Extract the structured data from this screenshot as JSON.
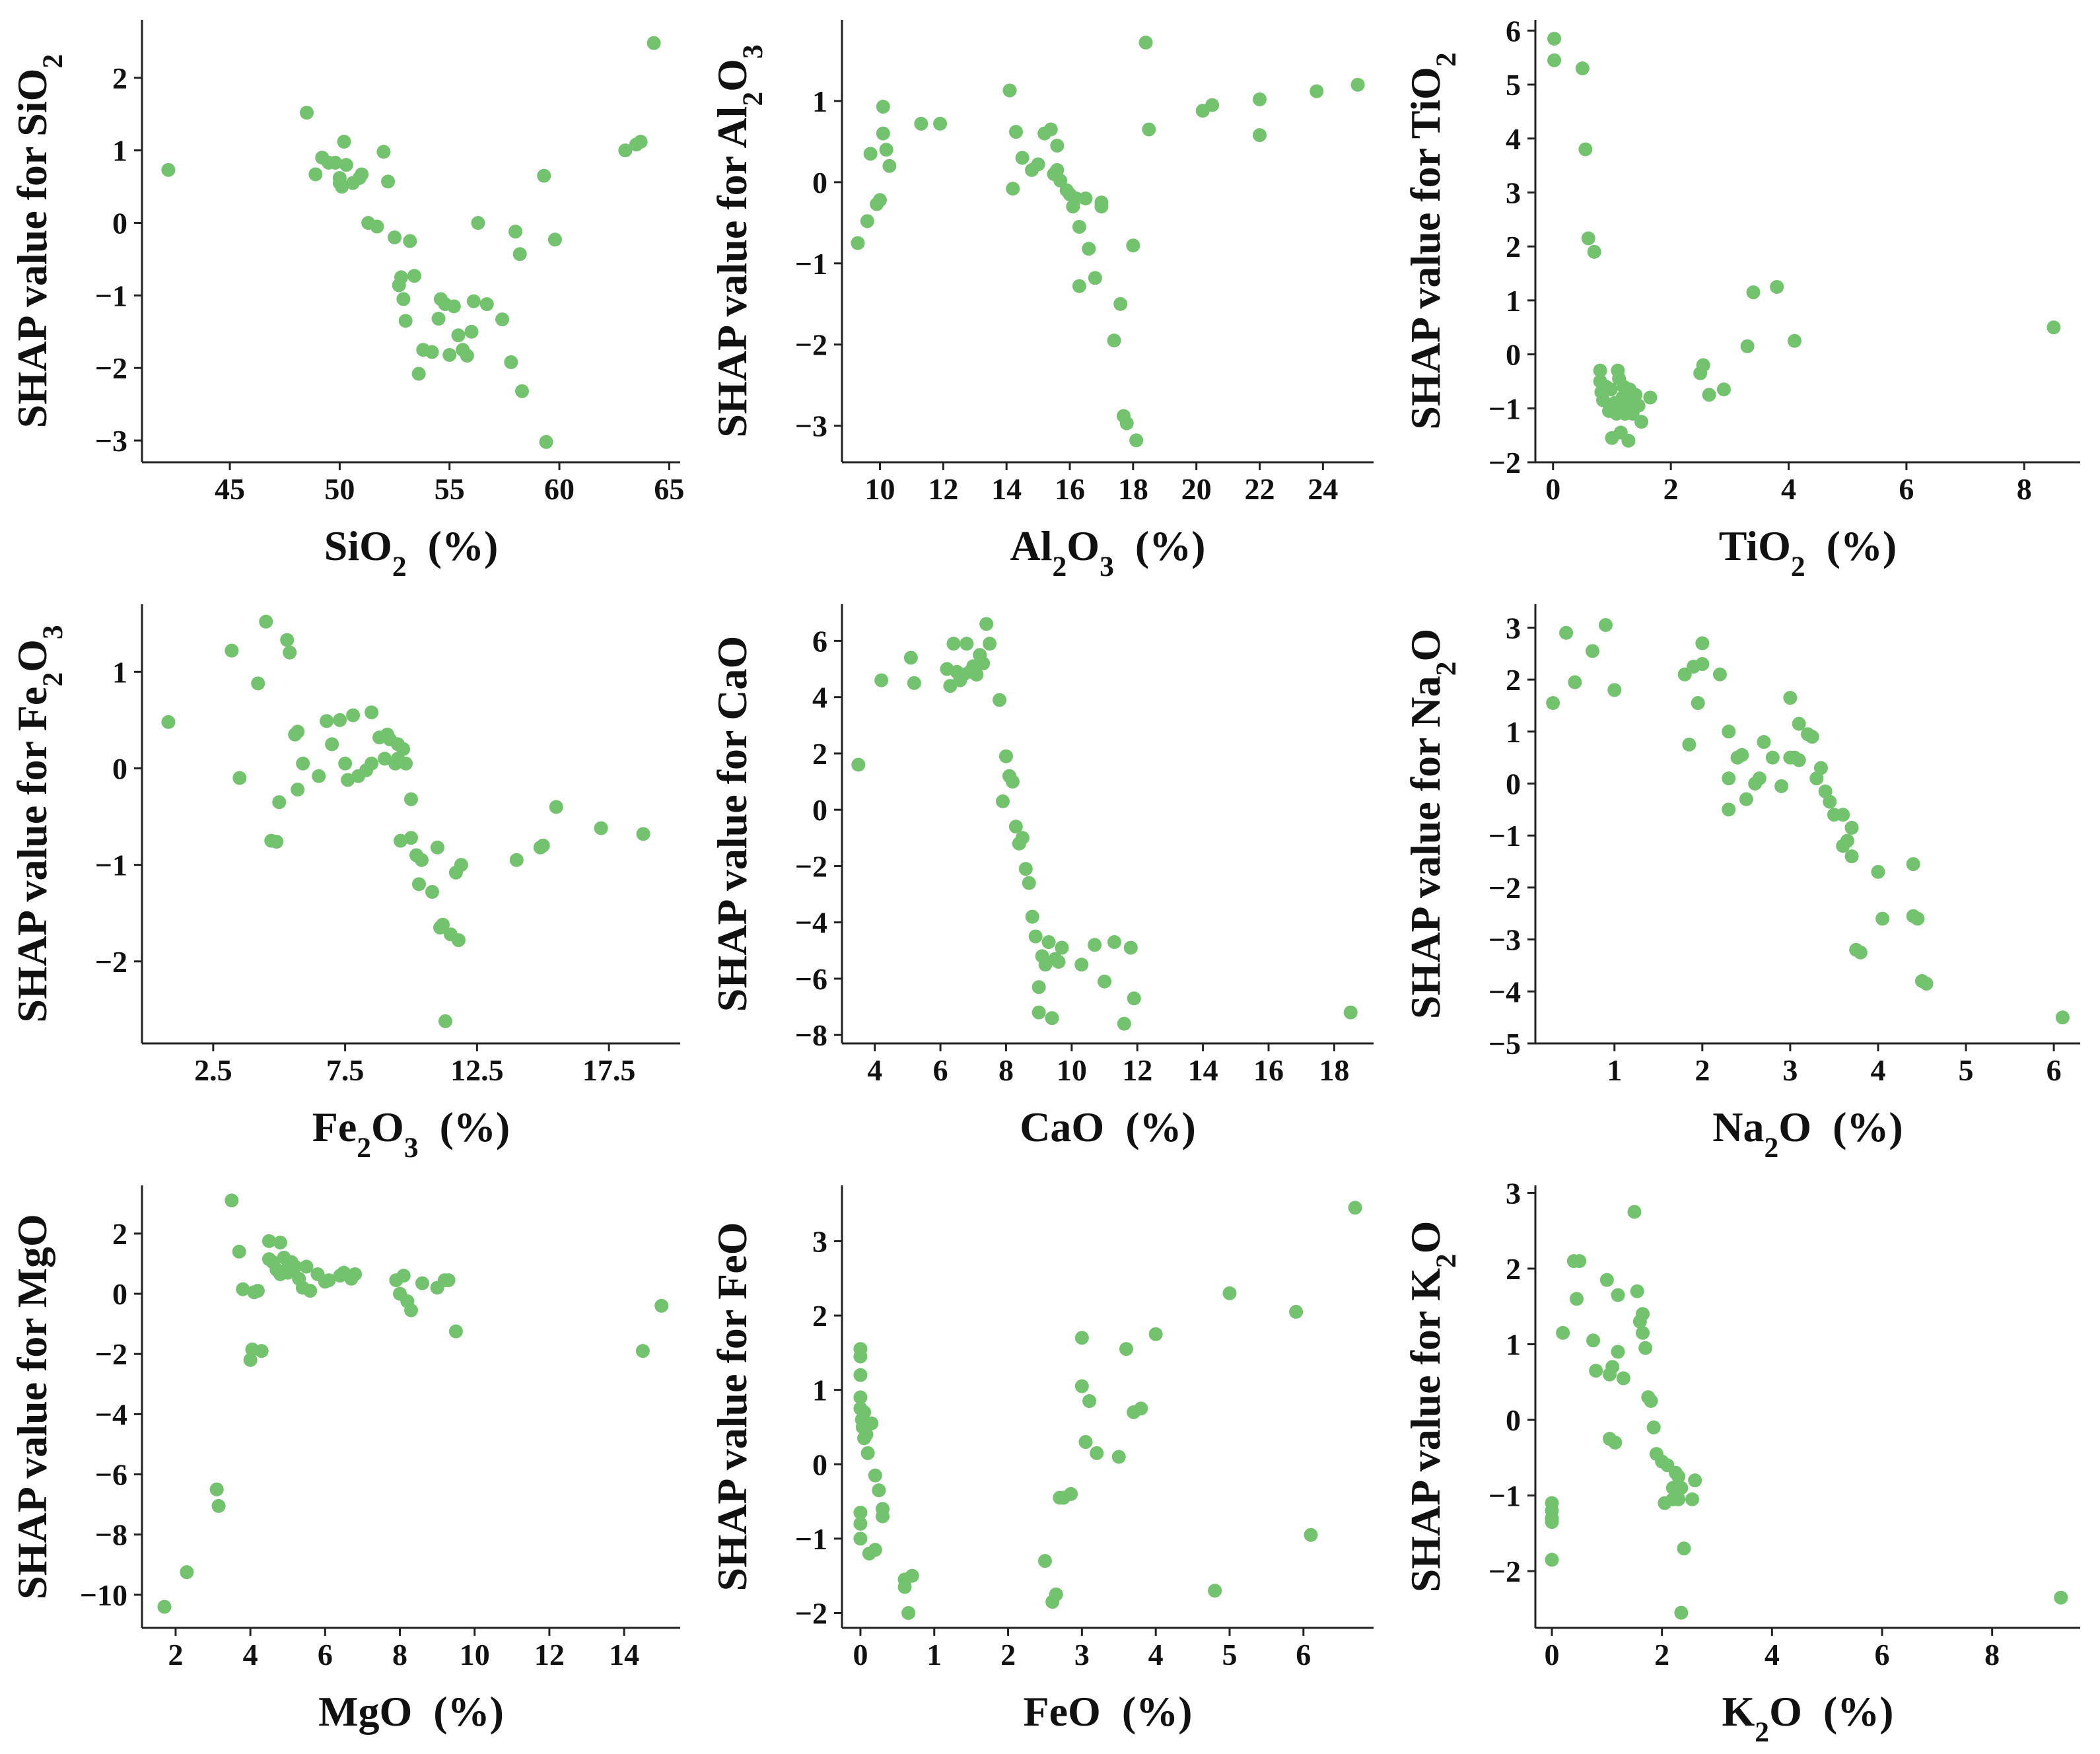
{
  "chart_data": [
    {
      "type": "scatter",
      "title": "",
      "xlabel": "SiO2 (%)",
      "ylabel": "SHAP value for SiO2",
      "xlim": [
        41,
        65.5
      ],
      "ylim": [
        -3.3,
        2.8
      ],
      "xticks": [
        "45",
        "50",
        "55",
        "60",
        "65"
      ],
      "yticks": [
        "2",
        "1",
        "0",
        "−1",
        "−2",
        "−3"
      ],
      "x": [
        42.2,
        48.5,
        48.9,
        49.2,
        49.5,
        49.8,
        50.0,
        50.0,
        50.1,
        50.2,
        50.3,
        50.6,
        50.9,
        51.0,
        51.3,
        51.7,
        52.0,
        52.2,
        52.5,
        52.7,
        52.8,
        52.9,
        53.0,
        53.2,
        53.4,
        53.6,
        53.8,
        54.2,
        54.5,
        54.6,
        54.8,
        55.0,
        55.2,
        55.4,
        55.6,
        55.8,
        56.0,
        56.1,
        56.3,
        56.7,
        57.4,
        57.8,
        58.0,
        58.2,
        58.3,
        59.3,
        59.4,
        59.8,
        63.0,
        63.5,
        63.7,
        64.3
      ],
      "y": [
        0.73,
        1.52,
        0.67,
        0.9,
        0.83,
        0.83,
        0.62,
        0.55,
        0.5,
        1.12,
        0.8,
        0.55,
        0.62,
        0.67,
        0.0,
        -0.05,
        0.98,
        0.57,
        -0.2,
        -0.86,
        -0.75,
        -1.05,
        -1.35,
        -0.25,
        -0.73,
        -2.08,
        -1.75,
        -1.78,
        -1.32,
        -1.05,
        -1.12,
        -1.82,
        -1.15,
        -1.55,
        -1.75,
        -1.83,
        -1.5,
        -1.08,
        -0.0,
        -1.12,
        -1.33,
        -1.92,
        -0.12,
        -0.43,
        -2.32,
        0.65,
        -3.02,
        -0.23,
        1.0,
        1.08,
        1.12,
        2.48
      ],
      "series_name": "SHAP values"
    },
    {
      "type": "scatter",
      "title": "",
      "xlabel": "Al2O3 (%)",
      "ylabel": "SHAP value for Al2O3",
      "xlim": [
        8.8,
        25.6
      ],
      "ylim": [
        -3.45,
        2.0
      ],
      "xticks": [
        "10",
        "12",
        "14",
        "16",
        "18",
        "20",
        "22",
        "24"
      ],
      "yticks": [
        "1",
        "0",
        "−1",
        "−2",
        "−3"
      ],
      "x": [
        9.3,
        9.6,
        9.7,
        9.9,
        10.0,
        10.1,
        10.1,
        10.2,
        10.3,
        11.3,
        11.9,
        14.1,
        14.2,
        14.3,
        14.5,
        14.8,
        15.0,
        15.2,
        15.4,
        15.5,
        15.6,
        15.6,
        15.7,
        15.9,
        16.0,
        16.1,
        16.2,
        16.3,
        16.3,
        16.5,
        16.6,
        16.8,
        17.0,
        17.0,
        17.4,
        17.6,
        17.7,
        17.8,
        18.0,
        18.1,
        18.4,
        18.5,
        20.2,
        20.5,
        22.0,
        22.0,
        23.8,
        25.1
      ],
      "y": [
        -0.75,
        -0.48,
        0.35,
        -0.27,
        -0.22,
        0.6,
        0.93,
        0.4,
        0.2,
        0.72,
        0.72,
        1.13,
        -0.08,
        0.62,
        0.3,
        0.15,
        0.22,
        0.6,
        0.65,
        0.1,
        0.45,
        0.15,
        0.02,
        -0.1,
        -0.15,
        -0.3,
        -0.2,
        -0.55,
        -1.28,
        -0.2,
        -0.82,
        -1.18,
        -0.25,
        -0.3,
        -1.95,
        -1.5,
        -2.88,
        -2.97,
        -0.78,
        -3.18,
        1.72,
        0.65,
        0.88,
        0.95,
        1.02,
        0.58,
        1.12,
        1.2
      ],
      "series_name": "SHAP values"
    },
    {
      "type": "scatter",
      "title": "",
      "xlabel": "TiO2 (%)",
      "ylabel": "SHAP value for TiO2",
      "xlim": [
        -0.3,
        8.95
      ],
      "ylim": [
        -2.0,
        6.2
      ],
      "xticks": [
        "0",
        "2",
        "4",
        "6",
        "8"
      ],
      "yticks": [
        "6",
        "5",
        "4",
        "3",
        "2",
        "1",
        "0",
        "−1",
        "−2"
      ],
      "x": [
        0.02,
        0.02,
        0.5,
        0.55,
        0.6,
        0.7,
        0.8,
        0.8,
        0.82,
        0.85,
        0.9,
        0.95,
        0.98,
        1.0,
        1.05,
        1.08,
        1.1,
        1.12,
        1.15,
        1.18,
        1.2,
        1.22,
        1.25,
        1.28,
        1.3,
        1.32,
        1.35,
        1.4,
        1.45,
        1.5,
        1.65,
        2.5,
        2.55,
        2.65,
        2.9,
        3.3,
        3.4,
        3.8,
        4.1,
        8.5
      ],
      "y": [
        5.85,
        5.45,
        5.3,
        3.8,
        2.15,
        1.9,
        -0.3,
        -0.5,
        -0.7,
        -0.85,
        -0.6,
        -1.05,
        -0.65,
        -1.55,
        -0.9,
        -1.1,
        -0.3,
        -0.45,
        -1.45,
        -0.8,
        -0.6,
        -1.1,
        -0.95,
        -1.6,
        -0.65,
        -0.85,
        -1.1,
        -0.75,
        -0.95,
        -1.25,
        -0.8,
        -0.35,
        -0.2,
        -0.75,
        -0.65,
        0.15,
        1.15,
        1.25,
        0.25,
        0.5
      ],
      "series_name": "SHAP values"
    },
    {
      "type": "scatter",
      "title": "",
      "xlabel": "Fe2O3 (%)",
      "ylabel": "SHAP value for Fe2O3",
      "xlim": [
        -0.2,
        20.2
      ],
      "ylim": [
        -2.85,
        1.7
      ],
      "xticks": [
        "2.5",
        "7.5",
        "12.5",
        "17.5"
      ],
      "yticks": [
        "1",
        "0",
        "−1",
        "−2"
      ],
      "x": [
        0.8,
        3.2,
        3.5,
        4.2,
        4.5,
        4.7,
        4.9,
        5.0,
        5.3,
        5.4,
        5.6,
        5.7,
        5.7,
        5.9,
        6.5,
        6.8,
        7.0,
        7.3,
        7.5,
        7.6,
        7.8,
        8.0,
        8.3,
        8.5,
        8.5,
        8.8,
        9.0,
        9.1,
        9.2,
        9.4,
        9.5,
        9.5,
        9.6,
        9.7,
        9.8,
        10.0,
        10.0,
        10.2,
        10.3,
        10.4,
        10.8,
        11.0,
        11.1,
        11.2,
        11.3,
        11.5,
        11.7,
        11.8,
        11.9,
        14.0,
        14.9,
        15.0,
        15.5,
        17.2,
        18.8
      ],
      "y": [
        0.48,
        1.22,
        -0.1,
        0.88,
        1.52,
        -0.75,
        -0.76,
        -0.35,
        1.33,
        1.2,
        0.35,
        0.38,
        -0.22,
        0.05,
        -0.08,
        0.49,
        0.25,
        0.5,
        0.05,
        -0.12,
        0.55,
        -0.08,
        -0.02,
        0.58,
        0.05,
        0.32,
        0.1,
        0.35,
        0.3,
        0.05,
        0.25,
        0.1,
        -0.75,
        0.2,
        0.05,
        -0.32,
        -0.72,
        -0.9,
        -1.2,
        -0.95,
        -1.28,
        -0.82,
        -1.65,
        -1.62,
        -2.62,
        -1.72,
        -1.08,
        -1.78,
        -1.0,
        -0.95,
        -0.82,
        -0.8,
        -0.4,
        -0.62,
        -0.68
      ],
      "series_name": "SHAP values"
    },
    {
      "type": "scatter",
      "title": "",
      "xlabel": "CaO (%)",
      "ylabel": "SHAP value for CaO",
      "xlim": [
        3.0,
        19.2
      ],
      "ylim": [
        -8.3,
        7.3
      ],
      "xticks": [
        "4",
        "6",
        "8",
        "10",
        "12",
        "14",
        "16",
        "18"
      ],
      "yticks": [
        "6",
        "4",
        "2",
        "0",
        "−2",
        "−4",
        "−6",
        "−8"
      ],
      "x": [
        3.5,
        4.2,
        5.1,
        5.2,
        6.2,
        6.3,
        6.4,
        6.5,
        6.6,
        6.7,
        6.8,
        6.9,
        7.0,
        7.1,
        7.2,
        7.3,
        7.4,
        7.5,
        7.8,
        7.9,
        8.0,
        8.1,
        8.2,
        8.3,
        8.4,
        8.5,
        8.6,
        8.7,
        8.8,
        8.9,
        9.0,
        9.0,
        9.1,
        9.2,
        9.3,
        9.4,
        9.5,
        9.6,
        9.7,
        10.3,
        10.7,
        11.0,
        11.3,
        11.6,
        11.8,
        11.9,
        18.5
      ],
      "y": [
        1.6,
        4.6,
        5.4,
        4.5,
        5.0,
        4.4,
        5.9,
        4.9,
        4.6,
        4.8,
        5.9,
        4.9,
        5.1,
        4.8,
        5.5,
        5.2,
        6.6,
        5.9,
        3.9,
        0.3,
        1.9,
        1.2,
        1.0,
        -0.6,
        -1.2,
        -1.0,
        -2.1,
        -2.6,
        -3.8,
        -4.5,
        -6.3,
        -7.2,
        -5.2,
        -5.5,
        -4.7,
        -7.4,
        -5.3,
        -5.4,
        -4.9,
        -5.5,
        -4.8,
        -6.1,
        -4.7,
        -7.6,
        -4.9,
        -6.7,
        -7.2
      ],
      "series_name": "SHAP values"
    },
    {
      "type": "scatter",
      "title": "",
      "xlabel": "Na2O (%)",
      "ylabel": "SHAP value for Na2O",
      "xlim": [
        0.1,
        6.3
      ],
      "ylim": [
        -5.0,
        3.45
      ],
      "xticks": [
        "1",
        "2",
        "3",
        "4",
        "5",
        "6"
      ],
      "yticks": [
        "3",
        "2",
        "1",
        "0",
        "−1",
        "−2",
        "−3",
        "−4",
        "−5"
      ],
      "x": [
        0.3,
        0.45,
        0.55,
        0.75,
        0.9,
        1.0,
        1.8,
        1.85,
        1.9,
        1.95,
        2.0,
        2.0,
        2.2,
        2.3,
        2.3,
        2.3,
        2.4,
        2.45,
        2.5,
        2.6,
        2.65,
        2.7,
        2.8,
        2.9,
        3.0,
        3.0,
        3.05,
        3.1,
        3.1,
        3.2,
        3.25,
        3.3,
        3.35,
        3.4,
        3.45,
        3.5,
        3.6,
        3.6,
        3.65,
        3.7,
        3.7,
        3.75,
        3.8,
        4.0,
        4.05,
        4.4,
        4.4,
        4.45,
        4.5,
        4.55,
        6.1
      ],
      "y": [
        1.55,
        2.9,
        1.95,
        2.55,
        3.05,
        1.8,
        2.1,
        0.75,
        2.25,
        1.55,
        2.7,
        2.3,
        2.1,
        1.0,
        -0.5,
        0.1,
        0.5,
        0.55,
        -0.3,
        0.0,
        0.1,
        0.8,
        0.5,
        -0.05,
        1.65,
        0.5,
        0.5,
        1.15,
        0.45,
        0.95,
        0.9,
        0.1,
        0.3,
        -0.15,
        -0.35,
        -0.6,
        -0.6,
        -1.2,
        -1.1,
        -1.4,
        -0.85,
        -3.2,
        -3.25,
        -1.7,
        -2.6,
        -2.55,
        -1.55,
        -2.6,
        -3.8,
        -3.85,
        -4.5
      ],
      "series_name": "SHAP values"
    },
    {
      "type": "scatter",
      "title": "",
      "xlabel": "MgO (%)",
      "ylabel": "SHAP value for MgO",
      "xlim": [
        1.1,
        15.5
      ],
      "ylim": [
        -11.1,
        3.6
      ],
      "xticks": [
        "2",
        "4",
        "6",
        "8",
        "10",
        "12",
        "14"
      ],
      "yticks": [
        "2",
        "0",
        "−2",
        "−4",
        "−6",
        "−8",
        "−10"
      ],
      "x": [
        1.7,
        2.3,
        3.1,
        3.15,
        3.5,
        3.7,
        3.8,
        4.0,
        4.05,
        4.1,
        4.2,
        4.3,
        4.5,
        4.5,
        4.6,
        4.7,
        4.8,
        4.8,
        4.9,
        5.0,
        5.0,
        5.1,
        5.2,
        5.3,
        5.4,
        5.5,
        5.6,
        5.8,
        6.0,
        6.1,
        6.4,
        6.5,
        6.7,
        6.8,
        7.9,
        8.0,
        8.1,
        8.2,
        8.3,
        8.6,
        9.0,
        9.2,
        9.3,
        9.5,
        14.5,
        15.0
      ],
      "y": [
        -10.4,
        -9.25,
        -6.5,
        -7.05,
        3.1,
        1.4,
        0.15,
        -2.2,
        -1.85,
        0.05,
        0.1,
        -1.9,
        1.75,
        1.15,
        1.05,
        0.8,
        1.7,
        0.65,
        1.2,
        0.85,
        0.7,
        1.05,
        0.9,
        0.5,
        0.2,
        0.9,
        0.1,
        0.65,
        0.4,
        0.45,
        0.6,
        0.7,
        0.5,
        0.65,
        0.45,
        0.0,
        0.6,
        -0.25,
        -0.55,
        0.35,
        0.2,
        0.45,
        0.45,
        -1.25,
        -1.9,
        -0.4
      ],
      "series_name": "SHAP values"
    },
    {
      "type": "scatter",
      "title": "",
      "xlabel": "FeO (%)",
      "ylabel": "SHAP value for FeO",
      "xlim": [
        -0.25,
        6.95
      ],
      "ylim": [
        -2.2,
        3.75
      ],
      "xticks": [
        "0",
        "1",
        "2",
        "3",
        "4",
        "5",
        "6"
      ],
      "yticks": [
        "3",
        "2",
        "1",
        "0",
        "−1",
        "−2"
      ],
      "x": [
        0.0,
        0.0,
        0.0,
        0.0,
        0.0,
        0.0,
        0.0,
        0.0,
        0.02,
        0.03,
        0.05,
        0.05,
        0.08,
        0.1,
        0.12,
        0.15,
        0.2,
        0.2,
        0.25,
        0.3,
        0.3,
        0.6,
        0.6,
        0.65,
        0.7,
        2.5,
        2.6,
        2.65,
        2.7,
        2.75,
        2.85,
        3.0,
        3.0,
        3.05,
        3.1,
        3.2,
        3.5,
        3.6,
        3.7,
        3.8,
        4.0,
        4.8,
        5.0,
        5.9,
        6.1,
        6.7
      ],
      "y": [
        1.55,
        1.45,
        1.2,
        0.9,
        0.75,
        -0.65,
        -0.8,
        -1.0,
        0.6,
        0.5,
        0.7,
        0.35,
        0.4,
        0.15,
        -1.2,
        0.55,
        -0.15,
        -1.15,
        -0.35,
        -0.6,
        -0.7,
        -1.55,
        -1.65,
        -2.0,
        -1.5,
        -1.3,
        -1.85,
        -1.75,
        -0.45,
        -0.45,
        -0.4,
        1.7,
        1.05,
        0.3,
        0.85,
        0.15,
        0.1,
        1.55,
        0.7,
        0.75,
        1.75,
        -1.7,
        2.3,
        2.05,
        -0.95,
        3.45
      ],
      "series_name": "SHAP values"
    },
    {
      "type": "scatter",
      "title": "",
      "xlabel": "K2O (%)",
      "ylabel": "SHAP value for K2O",
      "xlim": [
        -0.3,
        9.6
      ],
      "ylim": [
        -2.75,
        3.1
      ],
      "xticks": [
        "0",
        "2",
        "4",
        "6",
        "8"
      ],
      "yticks": [
        "3",
        "2",
        "1",
        "0",
        "−1",
        "−2"
      ],
      "x": [
        0.0,
        0.0,
        0.0,
        0.0,
        0.0,
        0.2,
        0.4,
        0.45,
        0.5,
        0.75,
        0.8,
        1.0,
        1.05,
        1.05,
        1.1,
        1.15,
        1.2,
        1.2,
        1.3,
        1.5,
        1.55,
        1.6,
        1.65,
        1.65,
        1.7,
        1.75,
        1.8,
        1.85,
        1.9,
        2.0,
        2.05,
        2.1,
        2.2,
        2.2,
        2.25,
        2.3,
        2.3,
        2.35,
        2.35,
        2.4,
        2.55,
        2.6,
        9.25
      ],
      "y": [
        -1.1,
        -1.2,
        -1.3,
        -1.35,
        -1.85,
        1.15,
        2.1,
        1.6,
        2.1,
        1.05,
        0.65,
        1.85,
        -0.25,
        0.6,
        0.7,
        -0.3,
        0.9,
        1.65,
        0.55,
        2.75,
        1.7,
        1.3,
        1.4,
        1.15,
        0.95,
        0.3,
        0.25,
        -0.1,
        -0.45,
        -0.55,
        -1.1,
        -0.6,
        -1.05,
        -0.9,
        -0.7,
        -0.75,
        -1.05,
        -2.55,
        -0.9,
        -1.7,
        -1.05,
        -0.8,
        -2.35
      ],
      "series_name": "SHAP values"
    }
  ],
  "colors": {
    "point": "#72c26e",
    "axis": "#222222"
  }
}
